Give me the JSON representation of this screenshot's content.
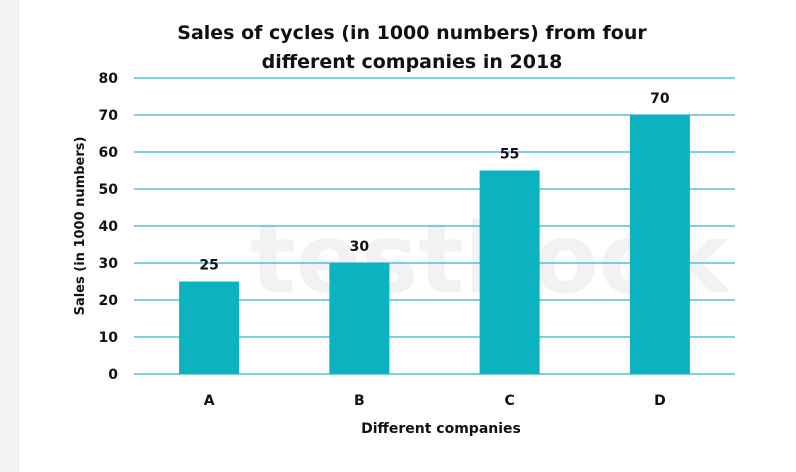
{
  "chart_data": {
    "type": "bar",
    "title_lines": [
      "Sales of cycles (in 1000 numbers) from four",
      "different companies in 2018"
    ],
    "categories": [
      "A",
      "B",
      "C",
      "D"
    ],
    "values": [
      25,
      30,
      55,
      70
    ],
    "data_labels": [
      "25",
      "30",
      "55",
      "70"
    ],
    "xlabel": "Different companies",
    "ylabel": "Sales (in 1000 numbers)",
    "ylim": [
      0,
      80
    ],
    "yticks": [
      0,
      10,
      20,
      30,
      40,
      50,
      60,
      70,
      80
    ],
    "ytick_labels": [
      "0",
      "10",
      "20",
      "30",
      "40",
      "50",
      "60",
      "70",
      "80"
    ],
    "grid": true,
    "bar_color": "#0bb3c1",
    "grid_color": "#2fb7c6"
  }
}
